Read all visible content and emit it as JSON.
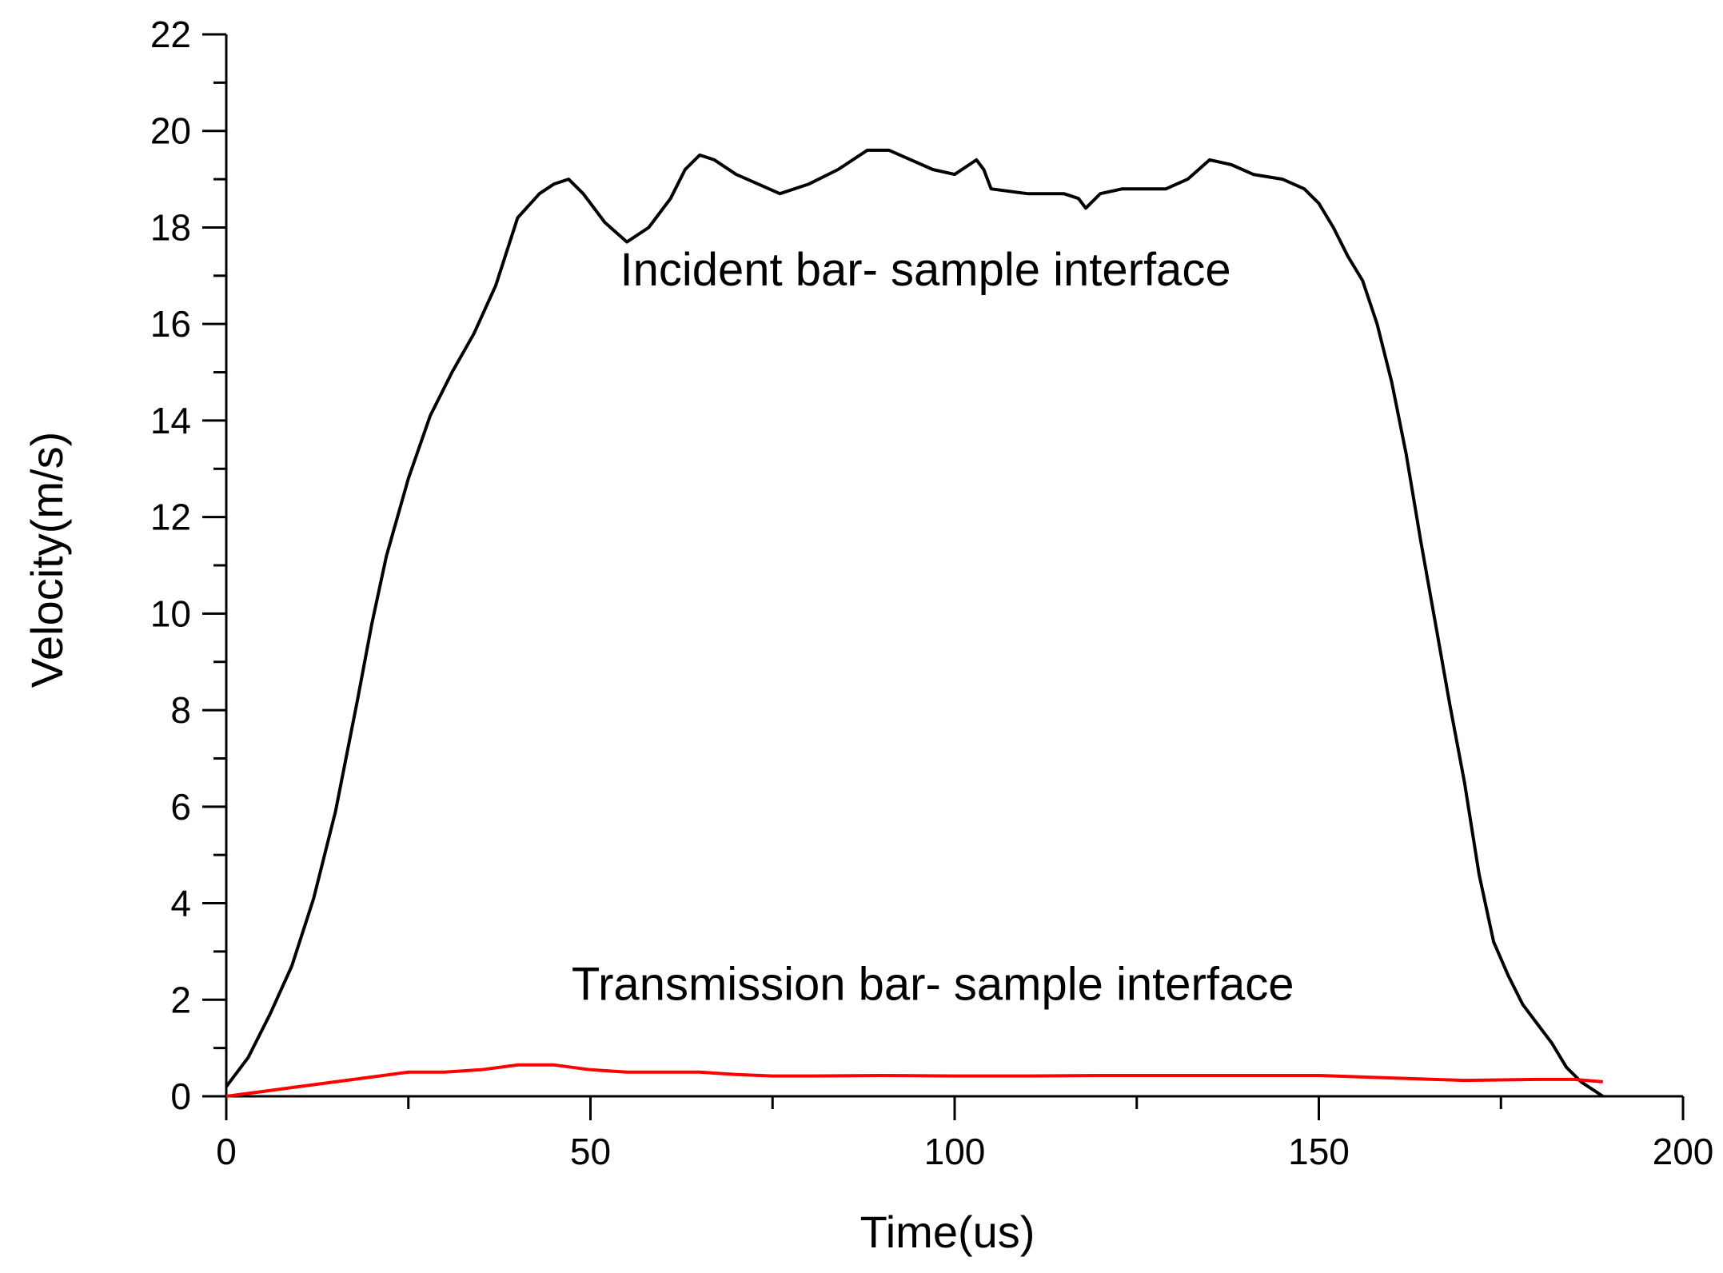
{
  "chart_data": {
    "type": "line",
    "title": "",
    "xlabel": "Time(us)",
    "ylabel": "Velocity(m/s)",
    "xlim": [
      0,
      200
    ],
    "ylim": [
      0,
      22
    ],
    "xticks": [
      0,
      50,
      100,
      150,
      200
    ],
    "xtick_labels": [
      "0",
      "50",
      "100",
      "150",
      "200"
    ],
    "yticks": [
      0,
      2,
      4,
      6,
      8,
      10,
      12,
      14,
      16,
      18,
      20,
      22
    ],
    "ytick_labels": [
      "0",
      "2",
      "4",
      "6",
      "8",
      "10",
      "12",
      "14",
      "16",
      "18",
      "20",
      "22"
    ],
    "grid": false,
    "legend": "none",
    "series": [
      {
        "color": "#000000",
        "x": [
          0,
          3,
          6,
          9,
          12,
          15,
          18,
          20,
          22,
          25,
          28,
          31,
          34,
          37,
          40,
          43,
          45,
          47,
          49,
          52,
          55,
          58,
          61,
          63,
          65,
          67,
          70,
          73,
          76,
          80,
          84,
          88,
          91,
          94,
          97,
          100,
          102,
          103,
          104,
          105,
          110,
          115,
          117,
          118,
          120,
          123,
          126,
          129,
          132,
          135,
          138,
          141,
          145,
          148,
          150,
          152,
          154,
          156,
          158,
          160,
          162,
          164,
          166,
          168,
          170,
          172,
          174,
          176,
          178,
          180,
          182,
          184,
          186,
          188,
          189
        ],
        "y": [
          0.2,
          0.8,
          1.7,
          2.7,
          4.1,
          5.9,
          8.2,
          9.8,
          11.2,
          12.8,
          14.1,
          15.0,
          15.8,
          16.8,
          18.2,
          18.7,
          18.9,
          19.0,
          18.7,
          18.1,
          17.7,
          18.0,
          18.6,
          19.2,
          19.5,
          19.4,
          19.1,
          18.9,
          18.7,
          18.9,
          19.2,
          19.6,
          19.6,
          19.4,
          19.2,
          19.1,
          19.3,
          19.4,
          19.2,
          18.8,
          18.7,
          18.7,
          18.6,
          18.4,
          18.7,
          18.8,
          18.8,
          18.8,
          19.0,
          19.4,
          19.3,
          19.1,
          19.0,
          18.8,
          18.5,
          18.0,
          17.4,
          16.9,
          16.0,
          14.8,
          13.3,
          11.5,
          9.8,
          8.1,
          6.5,
          4.6,
          3.2,
          2.5,
          1.9,
          1.5,
          1.1,
          0.6,
          0.3,
          0.1,
          0.0
        ]
      },
      {
        "color": "#ff0000",
        "x": [
          0,
          5,
          10,
          15,
          20,
          25,
          30,
          35,
          40,
          45,
          50,
          55,
          60,
          65,
          70,
          75,
          80,
          90,
          100,
          110,
          120,
          130,
          140,
          150,
          160,
          170,
          180,
          185,
          189
        ],
        "y": [
          0.0,
          0.1,
          0.2,
          0.3,
          0.4,
          0.5,
          0.5,
          0.55,
          0.65,
          0.65,
          0.55,
          0.5,
          0.5,
          0.5,
          0.45,
          0.42,
          0.42,
          0.43,
          0.42,
          0.42,
          0.43,
          0.43,
          0.43,
          0.43,
          0.38,
          0.33,
          0.35,
          0.35,
          0.3
        ]
      }
    ],
    "annotations": [
      {
        "text": "Incident bar- sample interface",
        "x": 96,
        "y": 16.8
      },
      {
        "text": "Transmission bar- sample interface",
        "x": 97,
        "y": 2.0
      }
    ]
  }
}
